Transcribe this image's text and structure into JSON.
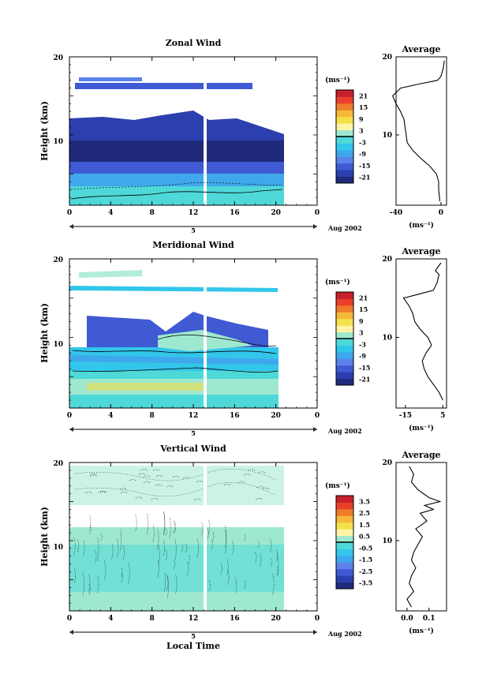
{
  "figure": {
    "x_title": "Local Time",
    "month_label": "Aug 2002",
    "day_label": "5",
    "average_title": "Average",
    "unit_label": "(ms⁻¹)",
    "x_ticks": [
      "0",
      "4",
      "8",
      "12",
      "16",
      "20",
      "0"
    ],
    "height_ticks": [
      "20",
      "10"
    ],
    "height_label": "Height (km)"
  },
  "chart_data": [
    {
      "type": "heatmap",
      "title": "Zonal Wind",
      "ylabel": "Height (km)",
      "xlabel": "",
      "xlim": [
        0,
        24
      ],
      "ylim": [
        1,
        20
      ],
      "x_ticks": [
        0,
        4,
        8,
        12,
        16,
        20,
        24
      ],
      "colorbar": {
        "unit": "(ms⁻¹)",
        "range": [
          -24,
          24
        ],
        "tick_values": [
          21,
          15,
          9,
          3,
          -3,
          -9,
          -15,
          -21
        ],
        "tick_labels": [
          "21",
          "15",
          "9",
          "3",
          "-3",
          "-9",
          "-15",
          "-21"
        ]
      },
      "colors": [
        "#1f2a7a",
        "#2c3fae",
        "#3f5ad2",
        "#5b82e8",
        "#3fa8ec",
        "#32c6ea",
        "#4fd8d8",
        "#9fe8d0",
        "#fff4a6",
        "#f4e04a",
        "#f5b83a",
        "#ee7c2a",
        "#e8402a",
        "#c8202a"
      ],
      "data_extent_hours": [
        0,
        21
      ],
      "gap_hour": 13,
      "profile": {
        "title": "Average",
        "xlim": [
          -40,
          5
        ],
        "x_tick_labels": [
          "-40",
          "0"
        ],
        "x_tick_values": [
          -40,
          0
        ],
        "unit": "(ms⁻¹)",
        "points": [
          [
            -1,
            1.5
          ],
          [
            -2,
            3
          ],
          [
            -2,
            4
          ],
          [
            -4,
            5
          ],
          [
            -10,
            6
          ],
          [
            -18,
            7
          ],
          [
            -25,
            8
          ],
          [
            -30,
            9
          ],
          [
            -31,
            10
          ],
          [
            -32,
            11
          ],
          [
            -33,
            12
          ],
          [
            -36,
            13
          ],
          [
            -40,
            14
          ],
          [
            -43,
            15
          ],
          [
            -36,
            16
          ],
          [
            -20,
            16.5
          ],
          [
            -3,
            17
          ],
          [
            0,
            17.5
          ],
          [
            2,
            18.5
          ],
          [
            3,
            19.5
          ]
        ]
      }
    },
    {
      "type": "heatmap",
      "title": "Meridional Wind",
      "ylabel": "Height (km)",
      "xlabel": "",
      "xlim": [
        0,
        24
      ],
      "ylim": [
        1,
        20
      ],
      "x_ticks": [
        0,
        4,
        8,
        12,
        16,
        20,
        24
      ],
      "colorbar": {
        "unit": "(ms⁻¹)",
        "range": [
          -24,
          24
        ],
        "tick_values": [
          21,
          15,
          9,
          3,
          -3,
          -9,
          -15,
          -21
        ],
        "tick_labels": [
          "21",
          "15",
          "9",
          "3",
          "-3",
          "-9",
          "-15",
          "-21"
        ]
      },
      "colors": [
        "#1f2a7a",
        "#2c3fae",
        "#3f5ad2",
        "#5b82e8",
        "#3fa8ec",
        "#32c6ea",
        "#4fd8d8",
        "#9fe8d0",
        "#fff4a6",
        "#f4e04a",
        "#f5b83a",
        "#ee7c2a",
        "#e8402a",
        "#c8202a"
      ],
      "data_extent_hours": [
        0,
        20.5
      ],
      "gap_hour": 13,
      "profile": {
        "title": "Average",
        "xlim": [
          -20,
          7
        ],
        "x_tick_labels": [
          "-15",
          "5"
        ],
        "x_tick_values": [
          -15,
          5
        ],
        "unit": "(ms⁻¹)",
        "points": [
          [
            5,
            2
          ],
          [
            3,
            3
          ],
          [
            0,
            4
          ],
          [
            -3,
            5
          ],
          [
            -5,
            6
          ],
          [
            -6,
            7
          ],
          [
            -4,
            8
          ],
          [
            -1,
            9
          ],
          [
            -3,
            10
          ],
          [
            -7,
            11
          ],
          [
            -10,
            12
          ],
          [
            -11,
            13
          ],
          [
            -13,
            14
          ],
          [
            -16,
            15
          ],
          [
            -8,
            15.5
          ],
          [
            0,
            16
          ],
          [
            2,
            17
          ],
          [
            3,
            18
          ],
          [
            1,
            18.5
          ],
          [
            4,
            19.5
          ]
        ]
      }
    },
    {
      "type": "heatmap",
      "title": "Vertical Wind",
      "ylabel": "Height (km)",
      "xlabel": "Local Time",
      "xlim": [
        0,
        24
      ],
      "ylim": [
        1,
        20
      ],
      "x_ticks": [
        0,
        4,
        8,
        12,
        16,
        20,
        24
      ],
      "colorbar": {
        "unit": "(ms⁻¹)",
        "range": [
          -4,
          4
        ],
        "tick_values": [
          3.5,
          2.5,
          1.5,
          0.5,
          -0.5,
          -1.5,
          -2.5,
          -3.5
        ],
        "tick_labels": [
          "3.5",
          "2.5",
          "1.5",
          "0.5",
          "-0.5",
          "-1.5",
          "-2.5",
          "-3.5"
        ]
      },
      "colors": [
        "#1f2a7a",
        "#2c3fae",
        "#3f5ad2",
        "#5b82e8",
        "#3fa8ec",
        "#32c6ea",
        "#4fd8d8",
        "#9fe8d0",
        "#fff4a6",
        "#f4e04a",
        "#f5b83a",
        "#ee7c2a",
        "#e8402a",
        "#c8202a"
      ],
      "data_extent_hours": [
        0,
        21
      ],
      "gap_hour": 13,
      "profile": {
        "title": "Average",
        "xlim": [
          -0.05,
          0.18
        ],
        "x_tick_labels": [
          "0.0",
          "0.1"
        ],
        "x_tick_values": [
          0.0,
          0.1
        ],
        "unit": "(ms⁻¹)",
        "points": [
          [
            0.02,
            1.5
          ],
          [
            0.0,
            2.5
          ],
          [
            0.03,
            3.5
          ],
          [
            0.01,
            4.5
          ],
          [
            0.02,
            5.5
          ],
          [
            0.04,
            6.5
          ],
          [
            0.02,
            7.5
          ],
          [
            0.03,
            8.5
          ],
          [
            0.05,
            9.5
          ],
          [
            0.07,
            10.5
          ],
          [
            0.04,
            11.5
          ],
          [
            0.09,
            12.5
          ],
          [
            0.06,
            13.5
          ],
          [
            0.12,
            14.0
          ],
          [
            0.08,
            14.5
          ],
          [
            0.15,
            15.0
          ],
          [
            0.1,
            15.5
          ],
          [
            0.05,
            16.5
          ],
          [
            0.02,
            17.5
          ],
          [
            0.03,
            18.5
          ],
          [
            0.01,
            19.5
          ]
        ]
      }
    }
  ]
}
